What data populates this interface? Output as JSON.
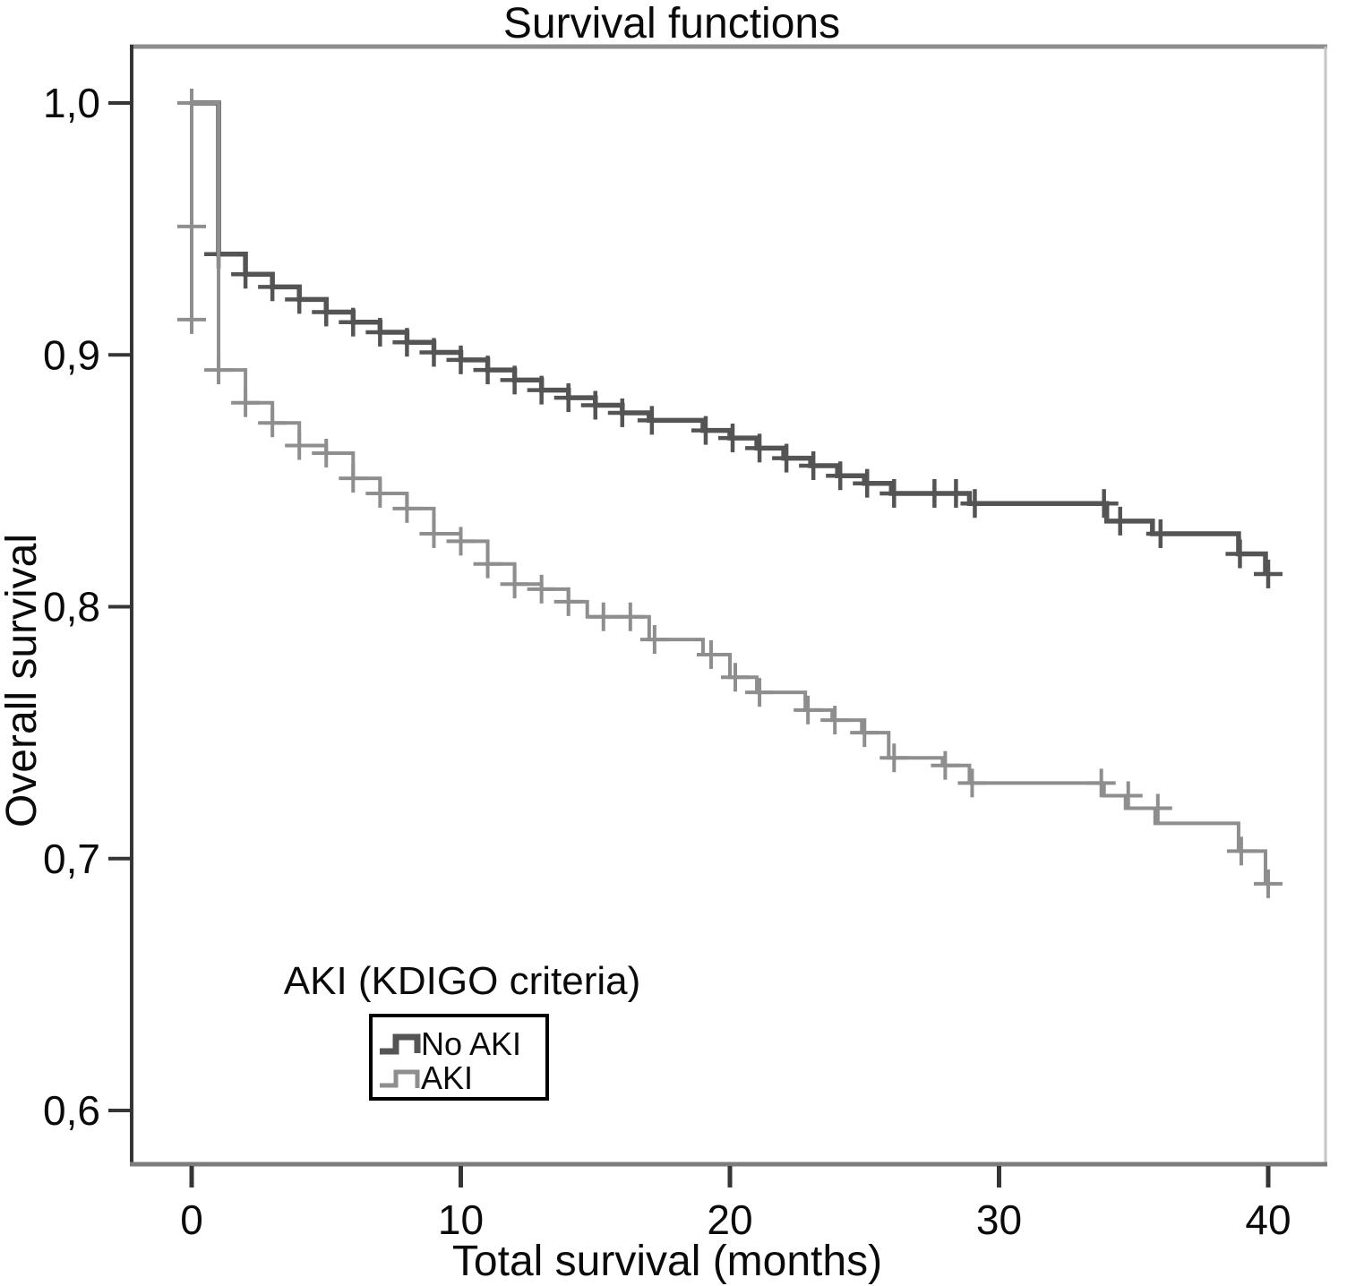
{
  "title": "Survival functions",
  "axes": {
    "x": {
      "label": "Total survival (months)",
      "ticks": [
        0,
        10,
        20,
        30,
        40
      ],
      "tick_labels": [
        "0",
        "10",
        "20",
        "30",
        "40"
      ]
    },
    "y": {
      "label": "Overall survival",
      "ticks": [
        1.0,
        0.9,
        0.8,
        0.7,
        0.6
      ],
      "tick_labels": [
        "1,0",
        "0,9",
        "0,8",
        "0,7",
        "0,6"
      ]
    }
  },
  "legend": {
    "title": "AKI (KDIGO criteria)",
    "items": [
      {
        "label": "No AKI",
        "color": "#545454"
      },
      {
        "label": "AKI",
        "color": "#8e8e8e"
      }
    ]
  },
  "colors": {
    "frame_left": "#353535",
    "frame_bottom": "#7b7b7b",
    "frame_top": "#8e8e8e",
    "frame_right": "#c6c6c6",
    "tick": "#353535",
    "text": "#0a0a0a",
    "legend_border": "#000000"
  },
  "chart_data": {
    "type": "line",
    "subtype": "kaplan-meier-step-curves",
    "title": "Survival functions",
    "xlabel": "Total survival (months)",
    "ylabel": "Overall survival",
    "xlim": [
      -2.2,
      42.2
    ],
    "ylim": [
      0.568,
      1.022
    ],
    "grid": false,
    "legend_position": "inside-bottom-left",
    "series": [
      {
        "name": "No AKI",
        "color": "#545454",
        "line_width": 5.5,
        "steps": [
          [
            0,
            1.0
          ],
          [
            1,
            0.94
          ],
          [
            2,
            0.932
          ],
          [
            3,
            0.927
          ],
          [
            4,
            0.922
          ],
          [
            5,
            0.917
          ],
          [
            6,
            0.913
          ],
          [
            7,
            0.909
          ],
          [
            8,
            0.905
          ],
          [
            9,
            0.901
          ],
          [
            10,
            0.898
          ],
          [
            11,
            0.894
          ],
          [
            12,
            0.89
          ],
          [
            13,
            0.886
          ],
          [
            14,
            0.883
          ],
          [
            15,
            0.88
          ],
          [
            16,
            0.877
          ],
          [
            17,
            0.874
          ],
          [
            19,
            0.87
          ],
          [
            20,
            0.867
          ],
          [
            21,
            0.863
          ],
          [
            22,
            0.859
          ],
          [
            23,
            0.856
          ],
          [
            24,
            0.852
          ],
          [
            25,
            0.849
          ],
          [
            26,
            0.845
          ],
          [
            28.9,
            0.841
          ],
          [
            34,
            0.834
          ],
          [
            35.7,
            0.829
          ],
          [
            38.9,
            0.821
          ],
          [
            39.9,
            0.813
          ]
        ],
        "censors": [
          [
            1.0,
            0.94
          ],
          [
            2.0,
            0.932
          ],
          [
            3.0,
            0.927
          ],
          [
            4.0,
            0.922
          ],
          [
            5.0,
            0.917
          ],
          [
            6.0,
            0.913
          ],
          [
            7.0,
            0.909
          ],
          [
            8.0,
            0.905
          ],
          [
            9.0,
            0.901
          ],
          [
            10.0,
            0.898
          ],
          [
            11.0,
            0.894
          ],
          [
            12.0,
            0.89
          ],
          [
            13.0,
            0.886
          ],
          [
            14.0,
            0.883
          ],
          [
            15.0,
            0.88
          ],
          [
            16.0,
            0.877
          ],
          [
            17.1,
            0.874
          ],
          [
            19.1,
            0.87
          ],
          [
            20.1,
            0.867
          ],
          [
            21.1,
            0.863
          ],
          [
            22.1,
            0.859
          ],
          [
            23.1,
            0.856
          ],
          [
            24.1,
            0.852
          ],
          [
            25.1,
            0.849
          ],
          [
            26.1,
            0.845
          ],
          [
            27.6,
            0.845
          ],
          [
            28.4,
            0.845
          ],
          [
            29.1,
            0.841
          ],
          [
            33.9,
            0.841
          ],
          [
            34.5,
            0.834
          ],
          [
            36.0,
            0.829
          ],
          [
            38.95,
            0.821
          ],
          [
            40.0,
            0.813
          ]
        ]
      },
      {
        "name": "AKI",
        "color": "#8e8e8e",
        "line_width": 4,
        "start_whisker": {
          "t": 0,
          "from": 1.0,
          "to": 0.914
        },
        "steps": [
          [
            0,
            1.0
          ],
          [
            1,
            0.894
          ],
          [
            2,
            0.881
          ],
          [
            3,
            0.873
          ],
          [
            4,
            0.864
          ],
          [
            5,
            0.861
          ],
          [
            6,
            0.851
          ],
          [
            7,
            0.845
          ],
          [
            8,
            0.839
          ],
          [
            9,
            0.829
          ],
          [
            10,
            0.826
          ],
          [
            11,
            0.817
          ],
          [
            12,
            0.809
          ],
          [
            13,
            0.807
          ],
          [
            14,
            0.802
          ],
          [
            14.7,
            0.796
          ],
          [
            17,
            0.787
          ],
          [
            19,
            0.781
          ],
          [
            20,
            0.772
          ],
          [
            21,
            0.766
          ],
          [
            22.8,
            0.759
          ],
          [
            23.8,
            0.755
          ],
          [
            24.9,
            0.75
          ],
          [
            25.9,
            0.74
          ],
          [
            27.9,
            0.737
          ],
          [
            28.9,
            0.73
          ],
          [
            33.9,
            0.725
          ],
          [
            34.7,
            0.72
          ],
          [
            35.8,
            0.714
          ],
          [
            38.9,
            0.703
          ],
          [
            39.9,
            0.69
          ]
        ],
        "censors": [
          [
            0,
            1.0
          ],
          [
            0,
            0.951
          ],
          [
            0,
            0.914
          ],
          [
            1.0,
            0.894
          ],
          [
            2.0,
            0.881
          ],
          [
            3.0,
            0.873
          ],
          [
            4.0,
            0.864
          ],
          [
            5.0,
            0.861
          ],
          [
            6.0,
            0.851
          ],
          [
            7.0,
            0.845
          ],
          [
            8.0,
            0.839
          ],
          [
            9.0,
            0.829
          ],
          [
            10.0,
            0.826
          ],
          [
            11.0,
            0.817
          ],
          [
            12.0,
            0.809
          ],
          [
            13.0,
            0.807
          ],
          [
            14.0,
            0.802
          ],
          [
            15.3,
            0.796
          ],
          [
            16.3,
            0.796
          ],
          [
            17.2,
            0.787
          ],
          [
            19.3,
            0.781
          ],
          [
            20.2,
            0.772
          ],
          [
            21.1,
            0.766
          ],
          [
            22.9,
            0.759
          ],
          [
            23.9,
            0.755
          ],
          [
            25.0,
            0.75
          ],
          [
            26.1,
            0.74
          ],
          [
            28.0,
            0.737
          ],
          [
            29.0,
            0.73
          ],
          [
            33.8,
            0.73
          ],
          [
            34.8,
            0.725
          ],
          [
            35.9,
            0.72
          ],
          [
            39.0,
            0.703
          ],
          [
            40.0,
            0.69
          ]
        ]
      }
    ]
  }
}
